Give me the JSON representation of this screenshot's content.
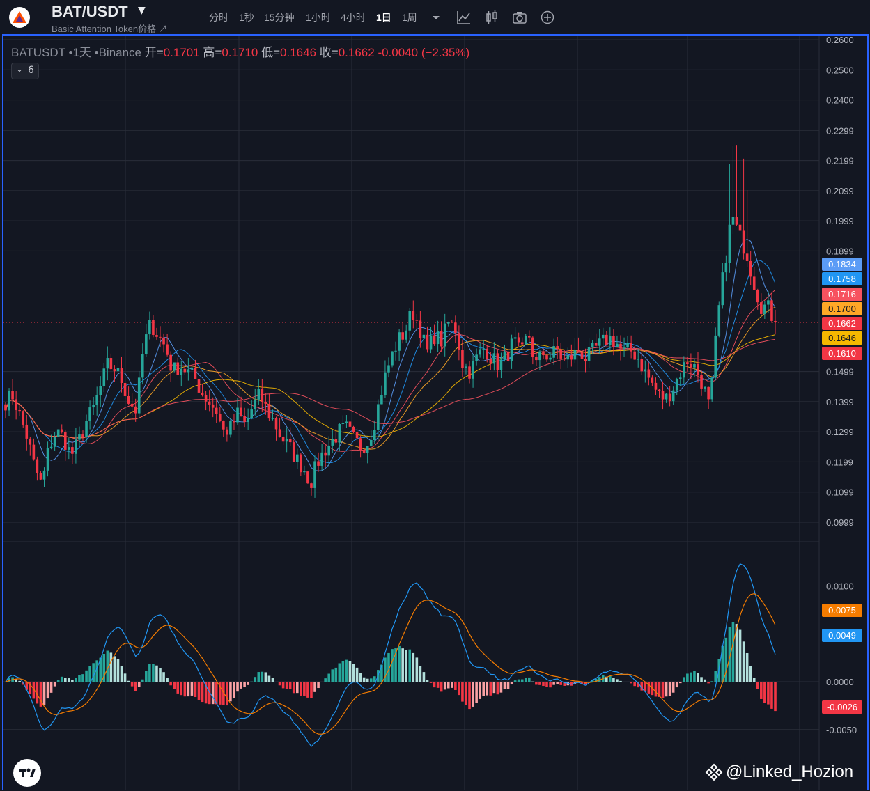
{
  "header": {
    "symbol": "BAT/USDT",
    "subtitle": "Basic Attention Token价格 ↗",
    "timeframes": [
      "分时",
      "1秒",
      "15分钟",
      "1小时",
      "4小时",
      "1日",
      "1周"
    ],
    "active_timeframe": "1日",
    "tools": [
      "caret-down-icon",
      "indicator-icon",
      "candles-icon",
      "camera-icon",
      "plus-circle-icon"
    ]
  },
  "legend": {
    "title": "BATUSDT •1天 •Binance",
    "open_label": "开=",
    "open": "0.1701",
    "high_label": "高=",
    "high": "0.1710",
    "low_label": "低=",
    "low": "0.1646",
    "close_label": "收=",
    "close": "0.1662",
    "change": "-0.0040 (−2.35%)",
    "indicator_count": "6"
  },
  "price_axis": [
    "0.2600",
    "0.2500",
    "0.2400",
    "0.2299",
    "0.2199",
    "0.2099",
    "0.1999",
    "0.1899",
    "0.1499",
    "0.1399",
    "0.1299",
    "0.1199",
    "0.1099",
    "0.0999"
  ],
  "macd_axis": [
    "0.0100",
    "0.0000",
    "-0.0050"
  ],
  "price_tags": [
    {
      "value": "0.1834",
      "color": "#5b9cf6"
    },
    {
      "value": "0.1758",
      "color": "#2196f3"
    },
    {
      "value": "0.1716",
      "color": "#f7525f"
    },
    {
      "value": "0.1700",
      "color": "#ffa726"
    },
    {
      "value": "0.1662",
      "color": "#f23645"
    },
    {
      "value": "0.1646",
      "color": "#f5b800"
    },
    {
      "value": "0.1610",
      "color": "#f23645"
    }
  ],
  "macd_tags": [
    {
      "value": "0.0075",
      "color": "#f57c00"
    },
    {
      "value": "0.0049",
      "color": "#2196f3"
    },
    {
      "value": "-0.0026",
      "color": "#f23645"
    }
  ],
  "colors": {
    "up": "#26a69a",
    "down": "#f23645",
    "ma_blue": "#2196f3",
    "ma_lblue": "#5b9cf6",
    "ma_red": "#f7525f",
    "ma_orange": "#ffa726",
    "ma_yellow": "#f5b800",
    "macd_line": "#2196f3",
    "signal_line": "#f57c00"
  },
  "chart_data": {
    "type": "candlestick",
    "ylim": [
      0.0999,
      0.26
    ],
    "close_path": [
      0.14,
      0.142,
      0.135,
      0.128,
      0.118,
      0.112,
      0.125,
      0.13,
      0.128,
      0.122,
      0.126,
      0.133,
      0.137,
      0.144,
      0.152,
      0.151,
      0.147,
      0.14,
      0.137,
      0.158,
      0.166,
      0.162,
      0.158,
      0.15,
      0.152,
      0.15,
      0.148,
      0.143,
      0.14,
      0.137,
      0.13,
      0.131,
      0.136,
      0.132,
      0.138,
      0.142,
      0.137,
      0.133,
      0.128,
      0.125,
      0.121,
      0.118,
      0.113,
      0.12,
      0.124,
      0.127,
      0.13,
      0.131,
      0.127,
      0.125,
      0.127,
      0.135,
      0.146,
      0.154,
      0.16,
      0.163,
      0.17,
      0.165,
      0.156,
      0.162,
      0.16,
      0.166,
      0.164,
      0.152,
      0.15,
      0.155,
      0.158,
      0.154,
      0.152,
      0.155,
      0.16,
      0.155,
      0.163,
      0.152,
      0.156,
      0.155,
      0.157,
      0.153,
      0.155,
      0.157,
      0.154,
      0.157,
      0.159,
      0.161,
      0.16,
      0.156,
      0.157,
      0.155,
      0.15,
      0.146,
      0.142,
      0.141,
      0.145,
      0.15,
      0.154,
      0.151,
      0.146,
      0.137,
      0.166,
      0.185,
      0.202,
      0.195,
      0.19,
      0.18,
      0.172,
      0.171,
      0.1662
    ],
    "macd": {
      "last_macd": 0.0049,
      "last_signal": 0.0075,
      "last_hist": -0.0026
    }
  },
  "watermark": "@Linked_Hozion"
}
